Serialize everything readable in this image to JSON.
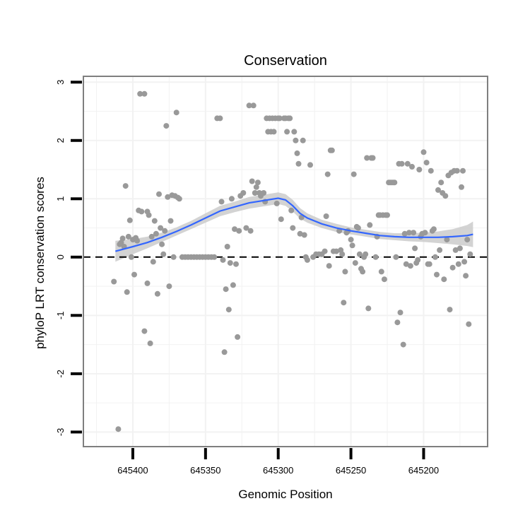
{
  "chart_data": {
    "type": "scatter",
    "title": "Conservation",
    "xlabel": "Genomic Position",
    "ylabel": "phyloP LRT conservation scores",
    "xlim": [
      645434,
      645156
    ],
    "ylim": [
      -3.25,
      3.1
    ],
    "x_reversed": true,
    "x_ticks": [
      645400,
      645350,
      645300,
      645250,
      645200
    ],
    "x_tick_labels": [
      "645400",
      "645350",
      "645300",
      "645250",
      "645200"
    ],
    "y_ticks": [
      -3,
      -2,
      -1,
      0,
      1,
      2,
      3
    ],
    "y_tick_labels": [
      "-3",
      "-2",
      "-1",
      "0",
      "1",
      "2",
      "3"
    ],
    "reference_line": {
      "y": 0,
      "style": "dashed"
    },
    "grid": true,
    "colors": {
      "points": "#999999",
      "smooth_line": "#3366FF",
      "confidence_band": "#C8C8C8",
      "grid": "#F2F2F2",
      "panel_border": "#7F7F7F"
    },
    "points": [
      [
        645413,
        -0.42
      ],
      [
        645410,
        -2.95
      ],
      [
        645409,
        0.22
      ],
      [
        645408,
        0.25
      ],
      [
        645407,
        0.32
      ],
      [
        645406,
        0.18
      ],
      [
        645405,
        1.22
      ],
      [
        645404,
        -0.6
      ],
      [
        645403,
        0.35
      ],
      [
        645402,
        0.63
      ],
      [
        645401,
        0.0
      ],
      [
        645400,
        0.3
      ],
      [
        645399,
        -0.3
      ],
      [
        645398,
        0.33
      ],
      [
        645397,
        0.28
      ],
      [
        645396,
        0.8
      ],
      [
        645395,
        2.8
      ],
      [
        645394,
        0.78
      ],
      [
        645392,
        2.8
      ],
      [
        645392,
        -1.27
      ],
      [
        645390,
        -0.45
      ],
      [
        645390,
        0.78
      ],
      [
        645389,
        0.72
      ],
      [
        645388,
        -1.48
      ],
      [
        645387,
        0.35
      ],
      [
        645386,
        -0.08
      ],
      [
        645385,
        0.62
      ],
      [
        645384,
        0.4
      ],
      [
        645383,
        -0.63
      ],
      [
        645382,
        1.08
      ],
      [
        645381,
        0.5
      ],
      [
        645380,
        0.22
      ],
      [
        645379,
        0.05
      ],
      [
        645378,
        0.45
      ],
      [
        645377,
        2.25
      ],
      [
        645376,
        1.03
      ],
      [
        645375,
        -0.5
      ],
      [
        645374,
        0.62
      ],
      [
        645373,
        1.06
      ],
      [
        645372,
        0.0
      ],
      [
        645371,
        1.05
      ],
      [
        645370,
        2.48
      ],
      [
        645369,
        1.02
      ],
      [
        645368,
        1.0
      ],
      [
        645366,
        0.0
      ],
      [
        645364,
        0.0
      ],
      [
        645362,
        0.0
      ],
      [
        645360,
        0.0
      ],
      [
        645358,
        0.0
      ],
      [
        645356,
        0.0
      ],
      [
        645354,
        0.0
      ],
      [
        645352,
        0.0
      ],
      [
        645350,
        0.0
      ],
      [
        645348,
        0.0
      ],
      [
        645346,
        0.0
      ],
      [
        645344,
        0.0
      ],
      [
        645342,
        2.38
      ],
      [
        645340,
        2.38
      ],
      [
        645339,
        0.95
      ],
      [
        645338,
        -0.05
      ],
      [
        645337,
        -1.63
      ],
      [
        645336,
        -0.55
      ],
      [
        645335,
        0.18
      ],
      [
        645334,
        -0.9
      ],
      [
        645333,
        -0.1
      ],
      [
        645332,
        1.0
      ],
      [
        645331,
        -0.48
      ],
      [
        645330,
        0.48
      ],
      [
        645329,
        -0.12
      ],
      [
        645328,
        -1.37
      ],
      [
        645327,
        0.45
      ],
      [
        645326,
        1.05
      ],
      [
        645324,
        1.1
      ],
      [
        645322,
        0.5
      ],
      [
        645320,
        2.6
      ],
      [
        645319,
        0.45
      ],
      [
        645318,
        1.3
      ],
      [
        645317,
        2.6
      ],
      [
        645316,
        1.1
      ],
      [
        645315,
        1.2
      ],
      [
        645314,
        1.28
      ],
      [
        645313,
        1.1
      ],
      [
        645312,
        1.05
      ],
      [
        645310,
        1.1
      ],
      [
        645309,
        0.95
      ],
      [
        645308,
        2.38
      ],
      [
        645307,
        2.15
      ],
      [
        645306,
        2.38
      ],
      [
        645305,
        2.15
      ],
      [
        645304,
        2.38
      ],
      [
        645303,
        2.15
      ],
      [
        645302,
        2.38
      ],
      [
        645301,
        0.92
      ],
      [
        645300,
        2.38
      ],
      [
        645299,
        2.38
      ],
      [
        645298,
        0.65
      ],
      [
        645296,
        2.38
      ],
      [
        645295,
        2.38
      ],
      [
        645294,
        2.15
      ],
      [
        645293,
        2.38
      ],
      [
        645292,
        2.38
      ],
      [
        645291,
        0.8
      ],
      [
        645290,
        0.5
      ],
      [
        645289,
        2.15
      ],
      [
        645288,
        2.0
      ],
      [
        645287,
        1.78
      ],
      [
        645286,
        1.6
      ],
      [
        645285,
        0.4
      ],
      [
        645284,
        0.68
      ],
      [
        645283,
        2.0
      ],
      [
        645282,
        0.38
      ],
      [
        645281,
        0.0
      ],
      [
        645280,
        -0.05
      ],
      [
        645278,
        1.58
      ],
      [
        645276,
        0.0
      ],
      [
        645274,
        0.05
      ],
      [
        645272,
        0.05
      ],
      [
        645270,
        0.05
      ],
      [
        645268,
        0.1
      ],
      [
        645267,
        0.7
      ],
      [
        645266,
        1.42
      ],
      [
        645265,
        -0.15
      ],
      [
        645264,
        1.83
      ],
      [
        645263,
        1.83
      ],
      [
        645262,
        0.1
      ],
      [
        645260,
        0.1
      ],
      [
        645258,
        0.45
      ],
      [
        645257,
        0.12
      ],
      [
        645256,
        0.05
      ],
      [
        645255,
        -0.78
      ],
      [
        645254,
        -0.25
      ],
      [
        645253,
        0.42
      ],
      [
        645252,
        0.45
      ],
      [
        645250,
        0.3
      ],
      [
        645249,
        0.2
      ],
      [
        645248,
        1.42
      ],
      [
        645247,
        -0.1
      ],
      [
        645246,
        0.52
      ],
      [
        645245,
        0.5
      ],
      [
        645244,
        0.05
      ],
      [
        645243,
        -0.2
      ],
      [
        645242,
        -0.25
      ],
      [
        645241,
        0.0
      ],
      [
        645240,
        0.05
      ],
      [
        645239,
        1.7
      ],
      [
        645238,
        -0.88
      ],
      [
        645237,
        0.55
      ],
      [
        645236,
        1.7
      ],
      [
        645235,
        1.7
      ],
      [
        645233,
        0.0
      ],
      [
        645232,
        0.35
      ],
      [
        645231,
        0.72
      ],
      [
        645230,
        0.72
      ],
      [
        645229,
        -0.25
      ],
      [
        645228,
        0.72
      ],
      [
        645227,
        -0.38
      ],
      [
        645226,
        0.72
      ],
      [
        645225,
        0.72
      ],
      [
        645224,
        1.28
      ],
      [
        645223,
        1.28
      ],
      [
        645222,
        1.28
      ],
      [
        645221,
        1.28
      ],
      [
        645220,
        1.28
      ],
      [
        645219,
        0.0
      ],
      [
        645218,
        -1.12
      ],
      [
        645217,
        1.6
      ],
      [
        645216,
        -0.95
      ],
      [
        645215,
        1.6
      ],
      [
        645214,
        -1.5
      ],
      [
        645213,
        0.4
      ],
      [
        645212,
        -0.12
      ],
      [
        645211,
        1.6
      ],
      [
        645210,
        0.42
      ],
      [
        645209,
        -0.15
      ],
      [
        645208,
        1.55
      ],
      [
        645207,
        0.42
      ],
      [
        645206,
        0.15
      ],
      [
        645205,
        -0.1
      ],
      [
        645204,
        -0.05
      ],
      [
        645203,
        1.5
      ],
      [
        645202,
        0.35
      ],
      [
        645201,
        0.4
      ],
      [
        645200,
        1.8
      ],
      [
        645199,
        0.42
      ],
      [
        645198,
        1.62
      ],
      [
        645197,
        -0.12
      ],
      [
        645196,
        -0.12
      ],
      [
        645195,
        1.48
      ],
      [
        645194,
        0.45
      ],
      [
        645193,
        0.48
      ],
      [
        645192,
        0.0
      ],
      [
        645191,
        -0.3
      ],
      [
        645190,
        1.15
      ],
      [
        645189,
        0.12
      ],
      [
        645188,
        1.28
      ],
      [
        645187,
        1.1
      ],
      [
        645186,
        -0.38
      ],
      [
        645185,
        1.05
      ],
      [
        645184,
        0.3
      ],
      [
        645183,
        1.4
      ],
      [
        645182,
        -0.9
      ],
      [
        645181,
        1.45
      ],
      [
        645180,
        -0.18
      ],
      [
        645179,
        1.48
      ],
      [
        645178,
        0.12
      ],
      [
        645177,
        1.48
      ],
      [
        645176,
        -0.12
      ],
      [
        645175,
        0.15
      ],
      [
        645174,
        1.2
      ],
      [
        645173,
        1.48
      ],
      [
        645172,
        -0.08
      ],
      [
        645171,
        -0.32
      ],
      [
        645170,
        0.3
      ],
      [
        645169,
        -1.15
      ],
      [
        645168,
        0.05
      ]
    ],
    "smooth": [
      [
        645412,
        0.1
      ],
      [
        645400,
        0.18
      ],
      [
        645390,
        0.25
      ],
      [
        645380,
        0.34
      ],
      [
        645370,
        0.44
      ],
      [
        645360,
        0.55
      ],
      [
        645350,
        0.67
      ],
      [
        645340,
        0.79
      ],
      [
        645330,
        0.86
      ],
      [
        645320,
        0.93
      ],
      [
        645310,
        0.97
      ],
      [
        645300,
        1.01
      ],
      [
        645295,
        0.98
      ],
      [
        645290,
        0.88
      ],
      [
        645285,
        0.75
      ],
      [
        645280,
        0.67
      ],
      [
        645270,
        0.57
      ],
      [
        645260,
        0.5
      ],
      [
        645250,
        0.45
      ],
      [
        645240,
        0.41
      ],
      [
        645230,
        0.37
      ],
      [
        645220,
        0.35
      ],
      [
        645210,
        0.34
      ],
      [
        645200,
        0.34
      ],
      [
        645190,
        0.34
      ],
      [
        645180,
        0.35
      ],
      [
        645170,
        0.37
      ],
      [
        645166,
        0.39
      ]
    ],
    "band_halfwidth": [
      0.18,
      0.13,
      0.1,
      0.08,
      0.07,
      0.07,
      0.08,
      0.09,
      0.09,
      0.1,
      0.1,
      0.1,
      0.1,
      0.1,
      0.09,
      0.08,
      0.07,
      0.07,
      0.06,
      0.06,
      0.06,
      0.06,
      0.07,
      0.08,
      0.1,
      0.13,
      0.18,
      0.22
    ]
  }
}
